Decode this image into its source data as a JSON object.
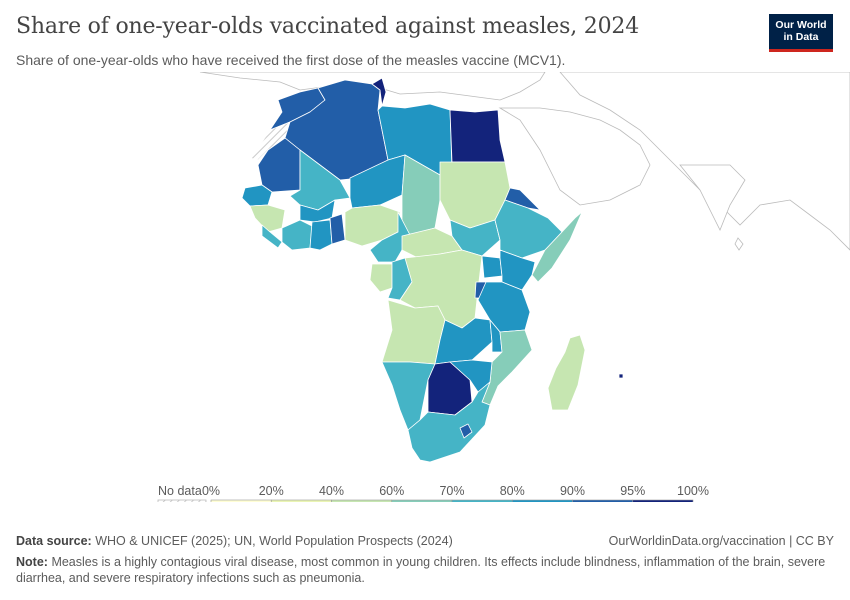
{
  "title": "Share of one-year-olds vaccinated against measles, 2024",
  "subtitle": "Share of one-year-olds who have received the first dose of the measles vaccine (MCV1).",
  "logo": {
    "line1": "Our World",
    "line2": "in Data"
  },
  "legend": {
    "no_data_label": "No data",
    "ticks": [
      "0%",
      "20%",
      "40%",
      "60%",
      "70%",
      "80%",
      "90%",
      "95%",
      "100%"
    ],
    "bins": [
      {
        "range": "0–20%",
        "color": "#fffed5"
      },
      {
        "range": "20–40%",
        "color": "#eaf5b4"
      },
      {
        "range": "40–60%",
        "color": "#c6e6b1"
      },
      {
        "range": "60–70%",
        "color": "#86cdb9"
      },
      {
        "range": "70–80%",
        "color": "#45b4c6"
      },
      {
        "range": "80–90%",
        "color": "#2195c2"
      },
      {
        "range": "90–95%",
        "color": "#225ea8"
      },
      {
        "range": "95–100%",
        "color": "#13237b"
      }
    ]
  },
  "map": {
    "region": "Africa",
    "countries": [
      {
        "name": "Morocco",
        "color": "#225ea8"
      },
      {
        "name": "Algeria",
        "color": "#225ea8"
      },
      {
        "name": "Tunisia",
        "color": "#13237b"
      },
      {
        "name": "Libya",
        "color": "#2195c2"
      },
      {
        "name": "Egypt",
        "color": "#13237b"
      },
      {
        "name": "Western Sahara",
        "color": "no-data"
      },
      {
        "name": "Mauritania",
        "color": "#225ea8"
      },
      {
        "name": "Mali",
        "color": "#45b4c6"
      },
      {
        "name": "Niger",
        "color": "#2195c2"
      },
      {
        "name": "Chad",
        "color": "#86cdb9"
      },
      {
        "name": "Sudan",
        "color": "#c6e6b1"
      },
      {
        "name": "Eritrea",
        "color": "#225ea8"
      },
      {
        "name": "Senegal",
        "color": "#2195c2"
      },
      {
        "name": "Guinea",
        "color": "#c6e6b1"
      },
      {
        "name": "Burkina Faso",
        "color": "#2195c2"
      },
      {
        "name": "Cote d'Ivoire",
        "color": "#45b4c6"
      },
      {
        "name": "Ghana",
        "color": "#2195c2"
      },
      {
        "name": "Nigeria",
        "color": "#c6e6b1"
      },
      {
        "name": "Cameroon",
        "color": "#45b4c6"
      },
      {
        "name": "Central African Republic",
        "color": "#c6e6b1"
      },
      {
        "name": "South Sudan",
        "color": "#c6e6b1"
      },
      {
        "name": "Ethiopia",
        "color": "#45b4c6"
      },
      {
        "name": "Somalia",
        "color": "#86cdb9"
      },
      {
        "name": "Gabon",
        "color": "#45b4c6"
      },
      {
        "name": "Congo",
        "color": "#45b4c6"
      },
      {
        "name": "Democratic Republic of Congo",
        "color": "#c6e6b1"
      },
      {
        "name": "Uganda",
        "color": "#2195c2"
      },
      {
        "name": "Kenya",
        "color": "#2195c2"
      },
      {
        "name": "Tanzania",
        "color": "#2195c2"
      },
      {
        "name": "Angola",
        "color": "#c6e6b1"
      },
      {
        "name": "Zambia",
        "color": "#2195c2"
      },
      {
        "name": "Malawi",
        "color": "#2195c2"
      },
      {
        "name": "Mozambique",
        "color": "#86cdb9"
      },
      {
        "name": "Madagascar",
        "color": "#c6e6b1"
      },
      {
        "name": "Namibia",
        "color": "#45b4c6"
      },
      {
        "name": "Botswana",
        "color": "#13237b"
      },
      {
        "name": "Zimbabwe",
        "color": "#2195c2"
      },
      {
        "name": "South Africa",
        "color": "#45b4c6"
      }
    ]
  },
  "footer": {
    "source_label": "Data source:",
    "source_text": "WHO & UNICEF (2025); UN, World Population Prospects (2024)",
    "url": "OurWorldinData.org/vaccination | CC BY",
    "note_label": "Note:",
    "note_text": "Measles is a highly contagious viral disease, most common in young children. Its effects include blindness, inflammation of the brain, severe diarrhea, and severe respiratory infections such as pneumonia."
  }
}
